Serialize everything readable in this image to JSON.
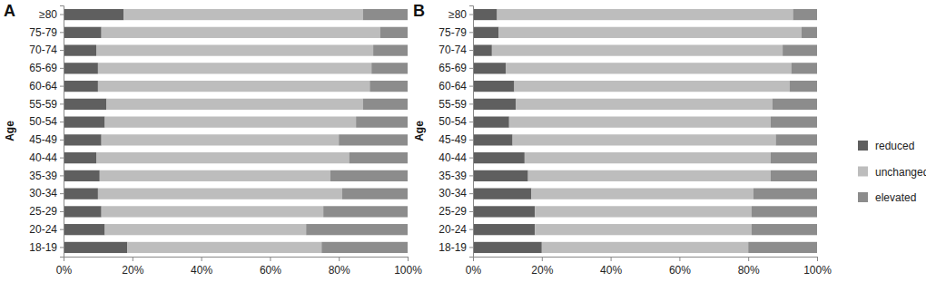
{
  "chart_data": [
    {
      "type": "bar",
      "title": "A",
      "orientation": "horizontal",
      "stacked": true,
      "ylabel": "Age",
      "categories": [
        "18-19",
        "20-24",
        "25-29",
        "30-34",
        "35-39",
        "40-44",
        "45-49",
        "50-54",
        "55-59",
        "60-64",
        "65-69",
        "70-74",
        "75-79",
        "≥80"
      ],
      "series": [
        {
          "color": "#5f5f5f",
          "values": [
            18.5,
            12,
            11,
            10,
            10.5,
            9.5,
            11,
            12,
            12.5,
            10,
            10,
            9.5,
            11,
            17.5
          ]
        },
        {
          "color": "#bdbdbd",
          "values": [
            56.5,
            58.5,
            64.5,
            71,
            67,
            73.5,
            69,
            73,
            74.5,
            79,
            79.5,
            80.5,
            81,
            69.5
          ]
        },
        {
          "color": "#8c8c8c",
          "values": [
            25,
            29.5,
            24.5,
            19,
            22.5,
            17,
            20,
            15,
            13,
            11,
            10.5,
            10,
            8,
            13
          ]
        }
      ],
      "xlim": [
        0,
        100
      ],
      "xticks": [
        {
          "value": 0,
          "label": "0%"
        },
        {
          "value": 20,
          "label": "20%"
        },
        {
          "value": 40,
          "label": "40%"
        },
        {
          "value": 60,
          "label": "60%"
        },
        {
          "value": 80,
          "label": "80%"
        },
        {
          "value": 100,
          "label": "100%"
        }
      ]
    },
    {
      "type": "bar",
      "title": "B",
      "orientation": "horizontal",
      "stacked": true,
      "ylabel": "Age",
      "legend": "right",
      "categories": [
        "18-19",
        "20-24",
        "25-29",
        "30-34",
        "35-39",
        "40-44",
        "45-49",
        "50-54",
        "55-59",
        "60-64",
        "65-69",
        "70-74",
        "75-79",
        "≥80"
      ],
      "series": [
        {
          "name": "reduced",
          "color": "#5f5f5f",
          "values": [
            20,
            18,
            18,
            17,
            16,
            15,
            11.5,
            10.5,
            12.5,
            12,
            9.5,
            5.5,
            7.5,
            7
          ]
        },
        {
          "name": "unchanged",
          "color": "#bdbdbd",
          "values": [
            60,
            63,
            63,
            64.5,
            70.5,
            71.5,
            76.5,
            76,
            74.5,
            80,
            83,
            84.5,
            88,
            86
          ]
        },
        {
          "name": "elevated",
          "color": "#8c8c8c",
          "values": [
            20,
            19,
            19,
            18.5,
            13.5,
            13.5,
            12,
            13.5,
            13,
            8,
            7.5,
            10,
            4.5,
            7
          ]
        }
      ],
      "xlim": [
        0,
        100
      ],
      "xticks": [
        {
          "value": 0,
          "label": "0%"
        },
        {
          "value": 20,
          "label": "20%"
        },
        {
          "value": 40,
          "label": "40%"
        },
        {
          "value": 60,
          "label": "60%"
        },
        {
          "value": 80,
          "label": "80%"
        },
        {
          "value": 100,
          "label": "100%"
        }
      ]
    }
  ]
}
